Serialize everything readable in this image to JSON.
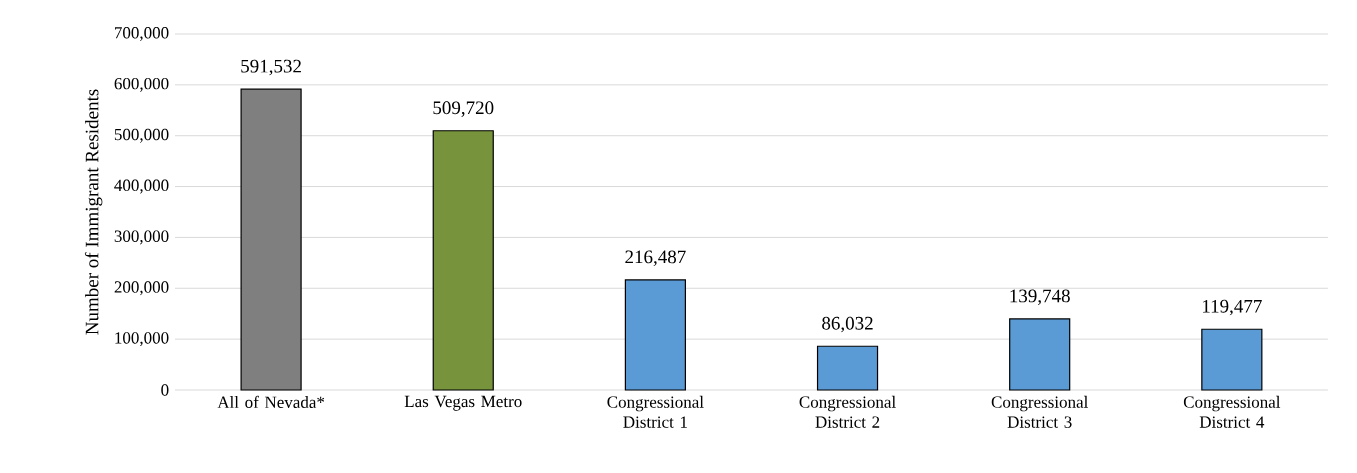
{
  "chart_data": {
    "type": "bar",
    "ylabel": "Number of Immigrant Residents",
    "categories": [
      "All of Nevada*",
      "Las Vegas Metro",
      "Congressional District 1",
      "Congressional District 2",
      "Congressional District 3",
      "Congressional District 4"
    ],
    "values": [
      591532,
      509720,
      216487,
      86032,
      139748,
      119477
    ],
    "colors": [
      "#7f7f7f",
      "#77933c",
      "#5b9bd5",
      "#5b9bd5",
      "#5b9bd5",
      "#5b9bd5"
    ],
    "value_labels": [
      "591,532",
      "509,720",
      "216,487",
      "86,032",
      "139,748",
      "119,477"
    ],
    "ylim": [
      0,
      700000
    ],
    "yticks": [
      0,
      {
        "value": 100000,
        "label": "100,000"
      },
      {
        "value": 200000,
        "label": "200,000"
      },
      {
        "value": 300000,
        "label": "300,000"
      },
      {
        "value": 400000,
        "label": "400,000"
      },
      {
        "value": 500000,
        "label": "500,000"
      },
      {
        "value": 600000,
        "label": "600,000"
      },
      {
        "value": 700000,
        "label": "700,000"
      }
    ],
    "grid": "y"
  }
}
